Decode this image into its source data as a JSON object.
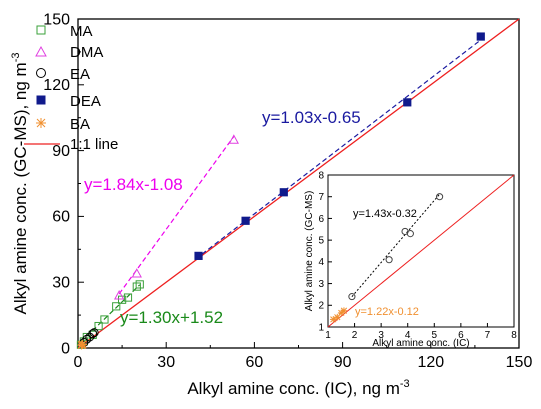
{
  "chart_data": [
    {
      "type": "scatter",
      "xlabel": "Alkyl amine conc. (IC), ng m",
      "xlabel_sup": "-3",
      "ylabel": "Alkyl amine conc. (GC-MS), ng m",
      "ylabel_sup": "-3",
      "xlim": [
        0,
        150
      ],
      "ylim": [
        0,
        150
      ],
      "xticks": [
        "0",
        "30",
        "60",
        "90",
        "120",
        "150"
      ],
      "yticks": [
        "0",
        "30",
        "60",
        "90",
        "120",
        "150"
      ],
      "legend_position": "top-left",
      "series": [
        {
          "name": "MA",
          "marker": "square-open",
          "color": "#3aa03a",
          "points": [
            [
              1,
              1.5
            ],
            [
              2,
              3
            ],
            [
              3,
              5
            ],
            [
              5,
              6
            ],
            [
              7,
              10
            ],
            [
              9,
              13
            ],
            [
              13,
              19
            ],
            [
              15,
              22
            ],
            [
              17,
              23
            ],
            [
              20,
              28
            ],
            [
              21,
              29
            ]
          ],
          "fit": {
            "label": "y=1.30x+1.52",
            "slope": 1.3,
            "intercept": 1.52,
            "x_range": [
              1,
              21
            ],
            "color": "#1a8a1a"
          }
        },
        {
          "name": "DMA",
          "marker": "triangle-open",
          "color": "#e040e0",
          "points": [
            [
              14,
              24
            ],
            [
              20,
              34
            ],
            [
              53,
              95
            ]
          ],
          "fit": {
            "label": "y=1.84x-1.08",
            "slope": 1.84,
            "intercept": -1.08,
            "x_range": [
              14,
              53
            ],
            "color": "#ee00ee"
          }
        },
        {
          "name": "EA",
          "marker": "circle-open",
          "color": "#000000",
          "points": [
            [
              2,
              2.5
            ],
            [
              3,
              4
            ],
            [
              4,
              5
            ],
            [
              5,
              6.5
            ],
            [
              5.5,
              7
            ]
          ]
        },
        {
          "name": "DEA",
          "marker": "square-filled",
          "color": "#101a8c",
          "points": [
            [
              41,
              42
            ],
            [
              57,
              58
            ],
            [
              70,
              71
            ],
            [
              112,
              112
            ],
            [
              137,
              142
            ]
          ],
          "fit": {
            "label": "y=1.03x-0.65",
            "slope": 1.03,
            "intercept": -0.65,
            "x_range": [
              40,
              137
            ],
            "color": "#1a1aa0"
          }
        },
        {
          "name": "BA",
          "marker": "x-star",
          "color": "#f09030",
          "points": [
            [
              1.2,
              1.3
            ],
            [
              1.5,
              1.5
            ],
            [
              1.6,
              1.7
            ]
          ]
        }
      ],
      "one_to_one": {
        "name": "1:1 line",
        "color": "#ee2020"
      }
    },
    {
      "type": "scatter",
      "inset": true,
      "xlabel": "Alkyl amine conc. (IC)",
      "ylabel": "Alkyl amine conc. (GC-MS)",
      "xlim": [
        1,
        8
      ],
      "ylim": [
        1,
        8
      ],
      "xticks": [
        "1",
        "2",
        "3",
        "4",
        "5",
        "6",
        "7",
        "8"
      ],
      "yticks": [
        "1",
        "2",
        "3",
        "4",
        "5",
        "6",
        "7",
        "8"
      ],
      "series": [
        {
          "name": "EA",
          "marker": "circle-open",
          "color": "#444444",
          "points": [
            [
              1.9,
              2.4
            ],
            [
              3.3,
              4.1
            ],
            [
              3.9,
              5.4
            ],
            [
              4.1,
              5.3
            ],
            [
              5.2,
              7.0
            ]
          ],
          "fit": {
            "label": "y=1.43x-0.32",
            "slope": 1.43,
            "intercept": -0.32,
            "x_range": [
              1.9,
              5.2
            ],
            "color": "#000000"
          }
        },
        {
          "name": "BA",
          "marker": "x-star",
          "color": "#f09030",
          "points": [
            [
              1.2,
              1.35
            ],
            [
              1.35,
              1.45
            ],
            [
              1.5,
              1.65
            ],
            [
              1.6,
              1.75
            ]
          ],
          "fit": {
            "label": "y=1.22x-0.12",
            "slope": 1.22,
            "intercept": -0.12,
            "x_range": [
              1.2,
              1.6
            ],
            "color": "#f09030"
          }
        }
      ],
      "one_to_one": {
        "color": "#ee2020"
      }
    }
  ]
}
